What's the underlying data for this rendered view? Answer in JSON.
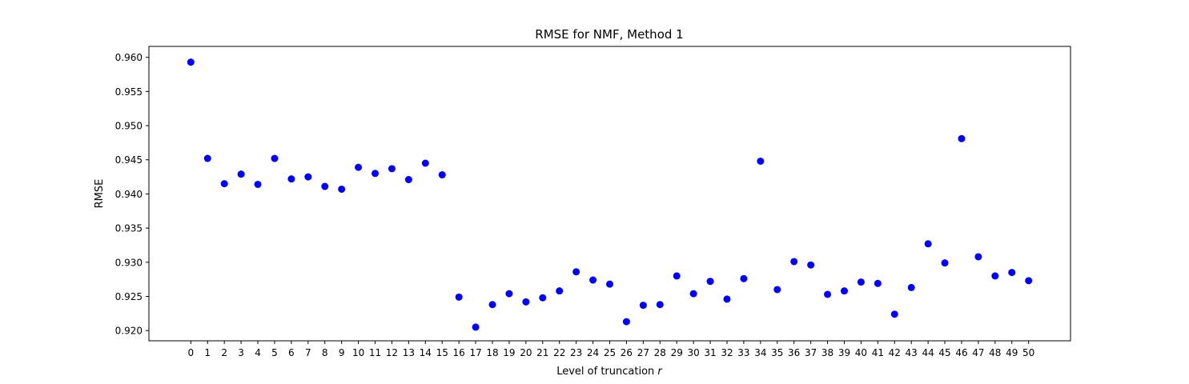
{
  "chart_data": {
    "type": "scatter",
    "title": "RMSE for NMF, Method 1",
    "xlabel_prefix": "Level of truncation ",
    "xlabel_var": "r",
    "ylabel": "RMSE",
    "xlim": [
      -2.5,
      52.5
    ],
    "ylim": [
      0.9185,
      0.9616
    ],
    "x_ticks": [
      0,
      1,
      2,
      3,
      4,
      5,
      6,
      7,
      8,
      9,
      10,
      11,
      12,
      13,
      14,
      15,
      16,
      17,
      18,
      19,
      20,
      21,
      22,
      23,
      24,
      25,
      26,
      27,
      28,
      29,
      30,
      31,
      32,
      33,
      34,
      35,
      36,
      37,
      38,
      39,
      40,
      41,
      42,
      43,
      44,
      45,
      46,
      47,
      48,
      49,
      50
    ],
    "y_ticks": [
      0.92,
      0.925,
      0.93,
      0.935,
      0.94,
      0.945,
      0.95,
      0.955,
      0.96
    ],
    "y_tick_labels": [
      "0.920",
      "0.925",
      "0.930",
      "0.935",
      "0.940",
      "0.945",
      "0.950",
      "0.955",
      "0.960"
    ],
    "marker_color": "#0000ff",
    "grid": false,
    "x": [
      0,
      1,
      2,
      3,
      4,
      5,
      6,
      7,
      8,
      9,
      10,
      11,
      12,
      13,
      14,
      15,
      16,
      17,
      18,
      19,
      20,
      21,
      22,
      23,
      24,
      25,
      26,
      27,
      28,
      29,
      30,
      31,
      32,
      33,
      34,
      35,
      36,
      37,
      38,
      39,
      40,
      41,
      42,
      43,
      44,
      45,
      46,
      47,
      48,
      49,
      50
    ],
    "y": [
      0.9593,
      0.9452,
      0.9415,
      0.9429,
      0.9414,
      0.9452,
      0.9422,
      0.9425,
      0.9411,
      0.9407,
      0.9439,
      0.943,
      0.9437,
      0.9421,
      0.9445,
      0.9428,
      0.9249,
      0.9205,
      0.9238,
      0.9254,
      0.9242,
      0.9248,
      0.9258,
      0.9286,
      0.9274,
      0.9268,
      0.9213,
      0.9237,
      0.9238,
      0.928,
      0.9254,
      0.9272,
      0.9246,
      0.9276,
      0.9448,
      0.926,
      0.9301,
      0.9296,
      0.9253,
      0.9258,
      0.9271,
      0.9269,
      0.9224,
      0.9263,
      0.9327,
      0.9299,
      0.9481,
      0.9308,
      0.928,
      0.9285,
      0.9273
    ]
  }
}
